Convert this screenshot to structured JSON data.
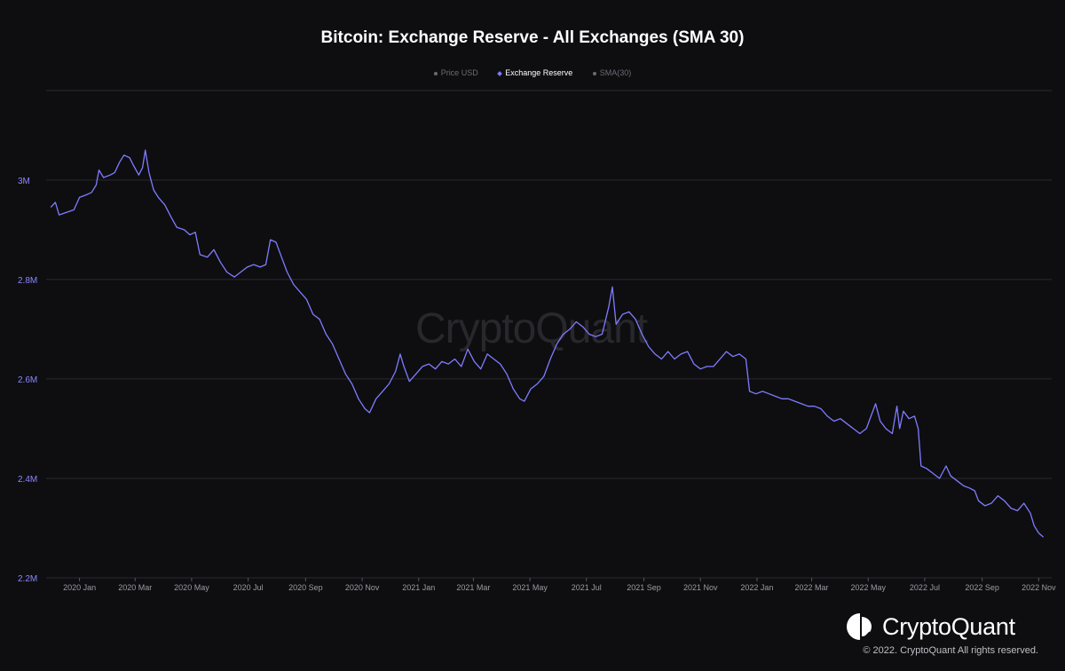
{
  "header": {
    "title": "Bitcoin: Exchange Reserve - All Exchanges (SMA 30)"
  },
  "legend": [
    {
      "label": "Price USD",
      "active": false
    },
    {
      "label": "Exchange Reserve",
      "active": true
    },
    {
      "label": "SMA(30)",
      "active": false
    }
  ],
  "watermark": "CryptoQuant",
  "brand": {
    "name": "CryptoQuant",
    "copyright": "© 2022. CryptoQuant All rights reserved."
  },
  "colors": {
    "background": "#0e0e11",
    "line": "#7f7cff",
    "grid": "#2a2a30",
    "axis_text": "#9a9aa3",
    "y_axis_text": "#8a86ff"
  },
  "chart_data": {
    "type": "line",
    "title": "Bitcoin: Exchange Reserve - All Exchanges (SMA 30)",
    "xlabel": "",
    "ylabel": "",
    "ylim": [
      2200000,
      3180000
    ],
    "xlim": [
      "2019-11-26",
      "2022-11-15"
    ],
    "grid": true,
    "legend_position": "top-center",
    "y_ticks": [
      {
        "value": 2200000,
        "label": "2.2M"
      },
      {
        "value": 2400000,
        "label": "2.4M"
      },
      {
        "value": 2600000,
        "label": "2.6M"
      },
      {
        "value": 2800000,
        "label": "2.8M"
      },
      {
        "value": 3000000,
        "label": "3M"
      }
    ],
    "x_ticks": [
      {
        "value": "2020-01-01",
        "label": "2020 Jan"
      },
      {
        "value": "2020-03-01",
        "label": "2020 Mar"
      },
      {
        "value": "2020-05-01",
        "label": "2020 May"
      },
      {
        "value": "2020-07-01",
        "label": "2020 Jul"
      },
      {
        "value": "2020-09-01",
        "label": "2020 Sep"
      },
      {
        "value": "2020-11-01",
        "label": "2020 Nov"
      },
      {
        "value": "2021-01-01",
        "label": "2021 Jan"
      },
      {
        "value": "2021-03-01",
        "label": "2021 Mar"
      },
      {
        "value": "2021-05-01",
        "label": "2021 May"
      },
      {
        "value": "2021-07-01",
        "label": "2021 Jul"
      },
      {
        "value": "2021-09-01",
        "label": "2021 Sep"
      },
      {
        "value": "2021-11-01",
        "label": "2021 Nov"
      },
      {
        "value": "2022-01-01",
        "label": "2022 Jan"
      },
      {
        "value": "2022-03-01",
        "label": "2022 Mar"
      },
      {
        "value": "2022-05-01",
        "label": "2022 May"
      },
      {
        "value": "2022-07-01",
        "label": "2022 Jul"
      },
      {
        "value": "2022-09-01",
        "label": "2022 Sep"
      },
      {
        "value": "2022-11-01",
        "label": "2022 Nov"
      }
    ],
    "series": [
      {
        "name": "Exchange Reserve",
        "color": "#7f7cff",
        "points": [
          [
            "2019-12-01",
            2945000
          ],
          [
            "2019-12-06",
            2955000
          ],
          [
            "2019-12-10",
            2930000
          ],
          [
            "2019-12-18",
            2935000
          ],
          [
            "2019-12-26",
            2940000
          ],
          [
            "2020-01-01",
            2965000
          ],
          [
            "2020-01-08",
            2970000
          ],
          [
            "2020-01-14",
            2975000
          ],
          [
            "2020-01-19",
            2990000
          ],
          [
            "2020-01-22",
            3020000
          ],
          [
            "2020-01-27",
            3005000
          ],
          [
            "2020-02-03",
            3010000
          ],
          [
            "2020-02-08",
            3015000
          ],
          [
            "2020-02-13",
            3035000
          ],
          [
            "2020-02-18",
            3050000
          ],
          [
            "2020-02-24",
            3045000
          ],
          [
            "2020-02-28",
            3030000
          ],
          [
            "2020-03-05",
            3010000
          ],
          [
            "2020-03-09",
            3025000
          ],
          [
            "2020-03-12",
            3060000
          ],
          [
            "2020-03-16",
            3015000
          ],
          [
            "2020-03-21",
            2980000
          ],
          [
            "2020-03-26",
            2965000
          ],
          [
            "2020-04-02",
            2950000
          ],
          [
            "2020-04-09",
            2925000
          ],
          [
            "2020-04-15",
            2905000
          ],
          [
            "2020-04-23",
            2900000
          ],
          [
            "2020-04-29",
            2890000
          ],
          [
            "2020-05-05",
            2895000
          ],
          [
            "2020-05-10",
            2850000
          ],
          [
            "2020-05-18",
            2845000
          ],
          [
            "2020-05-25",
            2860000
          ],
          [
            "2020-06-01",
            2835000
          ],
          [
            "2020-06-08",
            2815000
          ],
          [
            "2020-06-16",
            2805000
          ],
          [
            "2020-06-23",
            2815000
          ],
          [
            "2020-06-30",
            2825000
          ],
          [
            "2020-07-07",
            2830000
          ],
          [
            "2020-07-14",
            2825000
          ],
          [
            "2020-07-20",
            2830000
          ],
          [
            "2020-07-25",
            2880000
          ],
          [
            "2020-07-31",
            2875000
          ],
          [
            "2020-08-06",
            2845000
          ],
          [
            "2020-08-12",
            2815000
          ],
          [
            "2020-08-19",
            2790000
          ],
          [
            "2020-08-26",
            2775000
          ],
          [
            "2020-09-02",
            2760000
          ],
          [
            "2020-09-09",
            2730000
          ],
          [
            "2020-09-16",
            2720000
          ],
          [
            "2020-09-23",
            2690000
          ],
          [
            "2020-09-30",
            2670000
          ],
          [
            "2020-10-07",
            2640000
          ],
          [
            "2020-10-14",
            2610000
          ],
          [
            "2020-10-21",
            2590000
          ],
          [
            "2020-10-28",
            2560000
          ],
          [
            "2020-11-04",
            2540000
          ],
          [
            "2020-11-09",
            2532000
          ],
          [
            "2020-11-16",
            2560000
          ],
          [
            "2020-11-23",
            2575000
          ],
          [
            "2020-11-30",
            2590000
          ],
          [
            "2020-12-07",
            2615000
          ],
          [
            "2020-12-12",
            2650000
          ],
          [
            "2020-12-16",
            2625000
          ],
          [
            "2020-12-22",
            2595000
          ],
          [
            "2020-12-29",
            2610000
          ],
          [
            "2021-01-05",
            2625000
          ],
          [
            "2021-01-12",
            2630000
          ],
          [
            "2021-01-19",
            2620000
          ],
          [
            "2021-01-26",
            2635000
          ],
          [
            "2021-02-02",
            2630000
          ],
          [
            "2021-02-09",
            2640000
          ],
          [
            "2021-02-16",
            2625000
          ],
          [
            "2021-02-23",
            2660000
          ],
          [
            "2021-03-02",
            2635000
          ],
          [
            "2021-03-09",
            2620000
          ],
          [
            "2021-03-16",
            2650000
          ],
          [
            "2021-03-23",
            2640000
          ],
          [
            "2021-03-30",
            2630000
          ],
          [
            "2021-04-06",
            2610000
          ],
          [
            "2021-04-13",
            2580000
          ],
          [
            "2021-04-20",
            2560000
          ],
          [
            "2021-04-25",
            2555000
          ],
          [
            "2021-05-02",
            2580000
          ],
          [
            "2021-05-09",
            2590000
          ],
          [
            "2021-05-16",
            2605000
          ],
          [
            "2021-05-23",
            2640000
          ],
          [
            "2021-05-30",
            2670000
          ],
          [
            "2021-06-06",
            2690000
          ],
          [
            "2021-06-13",
            2700000
          ],
          [
            "2021-06-20",
            2715000
          ],
          [
            "2021-06-27",
            2705000
          ],
          [
            "2021-07-04",
            2690000
          ],
          [
            "2021-07-11",
            2685000
          ],
          [
            "2021-07-18",
            2690000
          ],
          [
            "2021-07-25",
            2745000
          ],
          [
            "2021-07-29",
            2785000
          ],
          [
            "2021-08-02",
            2710000
          ],
          [
            "2021-08-09",
            2730000
          ],
          [
            "2021-08-16",
            2735000
          ],
          [
            "2021-08-23",
            2720000
          ],
          [
            "2021-08-30",
            2690000
          ],
          [
            "2021-09-06",
            2665000
          ],
          [
            "2021-09-13",
            2650000
          ],
          [
            "2021-09-20",
            2640000
          ],
          [
            "2021-09-27",
            2655000
          ],
          [
            "2021-10-04",
            2640000
          ],
          [
            "2021-10-11",
            2650000
          ],
          [
            "2021-10-18",
            2655000
          ],
          [
            "2021-10-25",
            2630000
          ],
          [
            "2021-11-01",
            2620000
          ],
          [
            "2021-11-08",
            2625000
          ],
          [
            "2021-11-15",
            2625000
          ],
          [
            "2021-11-22",
            2640000
          ],
          [
            "2021-11-29",
            2655000
          ],
          [
            "2021-12-06",
            2645000
          ],
          [
            "2021-12-13",
            2650000
          ],
          [
            "2021-12-20",
            2640000
          ],
          [
            "2021-12-24",
            2575000
          ],
          [
            "2021-12-31",
            2570000
          ],
          [
            "2022-01-07",
            2575000
          ],
          [
            "2022-01-14",
            2570000
          ],
          [
            "2022-01-21",
            2565000
          ],
          [
            "2022-01-28",
            2560000
          ],
          [
            "2022-02-04",
            2560000
          ],
          [
            "2022-02-11",
            2555000
          ],
          [
            "2022-02-18",
            2550000
          ],
          [
            "2022-02-25",
            2545000
          ],
          [
            "2022-03-04",
            2545000
          ],
          [
            "2022-03-11",
            2540000
          ],
          [
            "2022-03-18",
            2525000
          ],
          [
            "2022-03-25",
            2515000
          ],
          [
            "2022-04-01",
            2520000
          ],
          [
            "2022-04-08",
            2510000
          ],
          [
            "2022-04-15",
            2500000
          ],
          [
            "2022-04-22",
            2490000
          ],
          [
            "2022-04-29",
            2500000
          ],
          [
            "2022-05-05",
            2530000
          ],
          [
            "2022-05-09",
            2550000
          ],
          [
            "2022-05-14",
            2515000
          ],
          [
            "2022-05-20",
            2500000
          ],
          [
            "2022-05-27",
            2490000
          ],
          [
            "2022-06-01",
            2545000
          ],
          [
            "2022-06-04",
            2500000
          ],
          [
            "2022-06-08",
            2535000
          ],
          [
            "2022-06-14",
            2520000
          ],
          [
            "2022-06-20",
            2525000
          ],
          [
            "2022-06-24",
            2500000
          ],
          [
            "2022-06-27",
            2425000
          ],
          [
            "2022-07-03",
            2420000
          ],
          [
            "2022-07-10",
            2410000
          ],
          [
            "2022-07-17",
            2400000
          ],
          [
            "2022-07-24",
            2425000
          ],
          [
            "2022-07-29",
            2405000
          ],
          [
            "2022-08-05",
            2395000
          ],
          [
            "2022-08-12",
            2385000
          ],
          [
            "2022-08-19",
            2380000
          ],
          [
            "2022-08-24",
            2375000
          ],
          [
            "2022-08-28",
            2355000
          ],
          [
            "2022-09-04",
            2345000
          ],
          [
            "2022-09-11",
            2350000
          ],
          [
            "2022-09-18",
            2365000
          ],
          [
            "2022-09-25",
            2355000
          ],
          [
            "2022-10-02",
            2340000
          ],
          [
            "2022-10-09",
            2335000
          ],
          [
            "2022-10-16",
            2350000
          ],
          [
            "2022-10-23",
            2330000
          ],
          [
            "2022-10-27",
            2305000
          ],
          [
            "2022-11-01",
            2290000
          ],
          [
            "2022-11-06",
            2282000
          ]
        ]
      }
    ]
  }
}
